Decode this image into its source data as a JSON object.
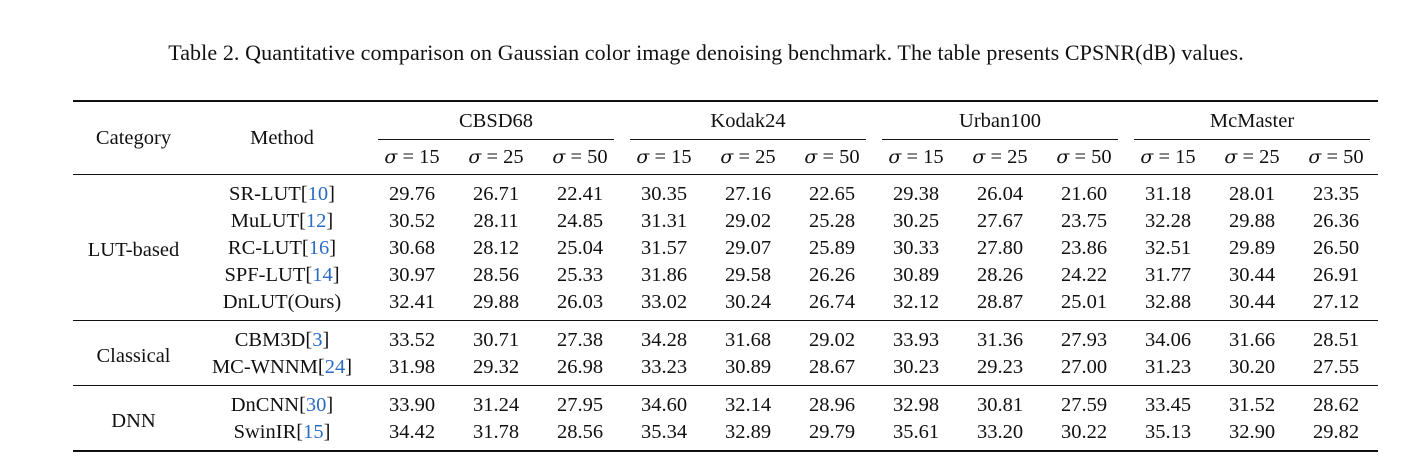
{
  "caption": "Table 2.  Quantitative comparison on Gaussian color image denoising benchmark. The table presents CPSNR(dB) values.",
  "header": {
    "category": "Category",
    "method": "Method",
    "datasets": [
      "CBSD68",
      "Kodak24",
      "Urban100",
      "McMaster"
    ],
    "sigma_symbol": "σ",
    "sigmas": [
      " = 15",
      " = 25",
      " = 50"
    ]
  },
  "groups": [
    {
      "category": "LUT-based",
      "rows": [
        {
          "method": "SR-LUT[",
          "ref": "10",
          "close": "]",
          "values": [
            "29.76",
            "26.71",
            "22.41",
            "30.35",
            "27.16",
            "22.65",
            "29.38",
            "26.04",
            "21.60",
            "31.18",
            "28.01",
            "23.35"
          ]
        },
        {
          "method": "MuLUT[",
          "ref": "12",
          "close": "]",
          "values": [
            "30.52",
            "28.11",
            "24.85",
            "31.31",
            "29.02",
            "25.28",
            "30.25",
            "27.67",
            "23.75",
            "32.28",
            "29.88",
            "26.36"
          ]
        },
        {
          "method": "RC-LUT[",
          "ref": "16",
          "close": "]",
          "values": [
            "30.68",
            "28.12",
            "25.04",
            "31.57",
            "29.07",
            "25.89",
            "30.33",
            "27.80",
            "23.86",
            "32.51",
            "29.89",
            "26.50"
          ]
        },
        {
          "method": "SPF-LUT[",
          "ref": "14",
          "close": "]",
          "values": [
            "30.97",
            "28.56",
            "25.33",
            "31.86",
            "29.58",
            "26.26",
            "30.89",
            "28.26",
            "24.22",
            "31.77",
            "30.44",
            "26.91"
          ]
        },
        {
          "method": "DnLUT(Ours)",
          "ref": "",
          "close": "",
          "values": [
            "32.41",
            "29.88",
            "26.03",
            "33.02",
            "30.24",
            "26.74",
            "32.12",
            "28.87",
            "25.01",
            "32.88",
            "30.44",
            "27.12"
          ]
        }
      ]
    },
    {
      "category": "Classical",
      "rows": [
        {
          "method": "CBM3D[",
          "ref": "3",
          "close": "]",
          "values": [
            "33.52",
            "30.71",
            "27.38",
            "34.28",
            "31.68",
            "29.02",
            "33.93",
            "31.36",
            "27.93",
            "34.06",
            "31.66",
            "28.51"
          ]
        },
        {
          "method": "MC-WNNM[",
          "ref": "24",
          "close": "]",
          "values": [
            "31.98",
            "29.32",
            "26.98",
            "33.23",
            "30.89",
            "28.67",
            "30.23",
            "29.23",
            "27.00",
            "31.23",
            "30.20",
            "27.55"
          ]
        }
      ]
    },
    {
      "category": "DNN",
      "rows": [
        {
          "method": "DnCNN[",
          "ref": "30",
          "close": "]",
          "values": [
            "33.90",
            "31.24",
            "27.95",
            "34.60",
            "32.14",
            "28.96",
            "32.98",
            "30.81",
            "27.59",
            "33.45",
            "31.52",
            "28.62"
          ]
        },
        {
          "method": "SwinIR[",
          "ref": "15",
          "close": "]",
          "values": [
            "34.42",
            "31.78",
            "28.56",
            "35.34",
            "32.89",
            "29.79",
            "35.61",
            "33.20",
            "30.22",
            "35.13",
            "32.90",
            "29.82"
          ]
        }
      ]
    }
  ]
}
